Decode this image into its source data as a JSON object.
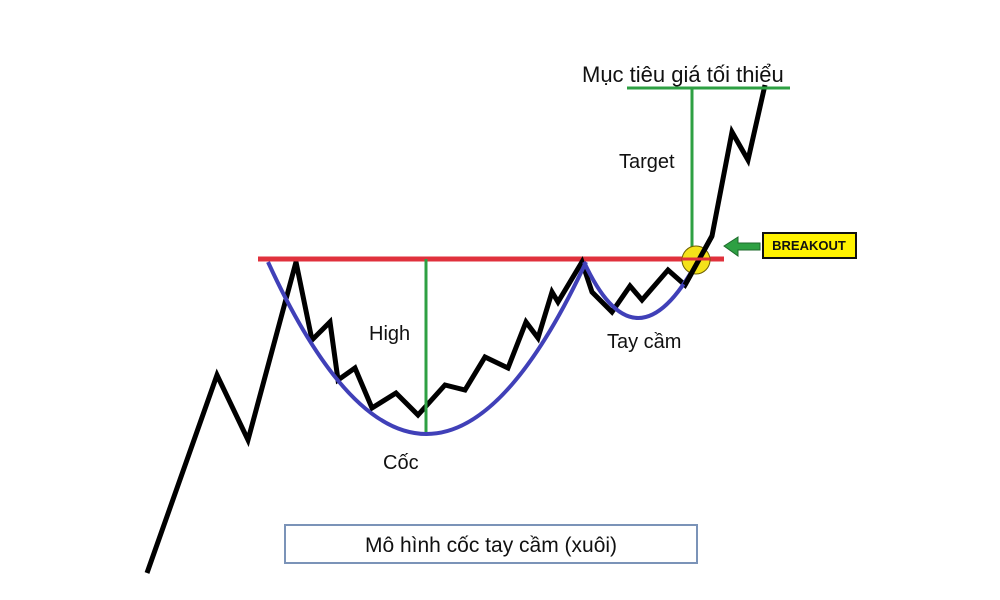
{
  "labels": {
    "min_target": "Mục tiêu giá tối thiểu",
    "target": "Target",
    "high": "High",
    "cup": "Cốc",
    "handle": "Tay cầm",
    "breakout": "BREAKOUT",
    "caption": "Mô hình cốc tay cầm (xuôi)"
  },
  "colors": {
    "price_line": "#000000",
    "resistance_line": "#e0313c",
    "cup_curve": "#4040b8",
    "measure_line": "#2ea043",
    "breakout_box": "#fff200",
    "breakout_arrow": "#2ea043",
    "breakout_marker": "#f4e21a",
    "caption_border": "#7b93b8"
  },
  "icons": {
    "breakout_arrow": "left-arrow-icon",
    "breakout_marker": "circle-marker-icon"
  }
}
